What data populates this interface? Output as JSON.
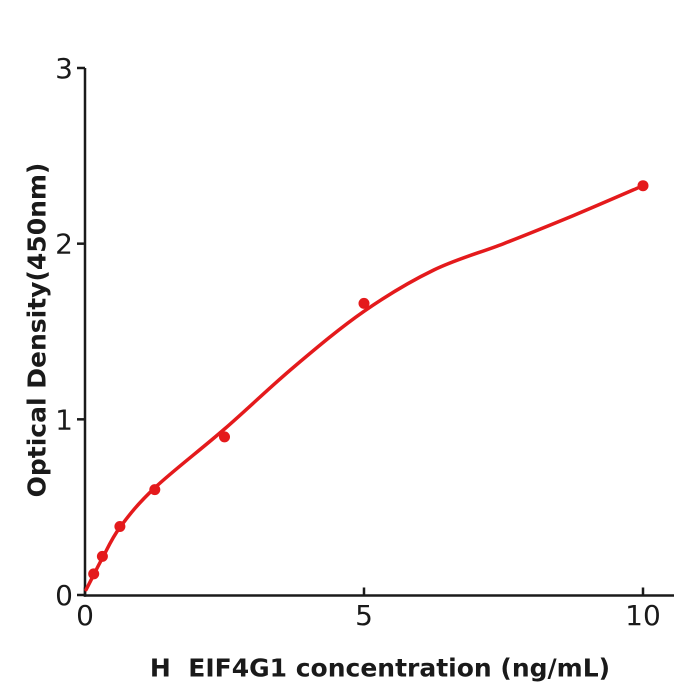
{
  "figure": {
    "background": "#ffffff",
    "x_axis_title": "H  EIF4G1 concentration (ng/mL)",
    "y_axis_title": "Optical Density(450nm)"
  },
  "chart_data": {
    "type": "scatter",
    "title": "",
    "xlabel": "H  EIF4G1 concentration (ng/mL)",
    "ylabel": "Optical Density(450nm)",
    "xlim": [
      0,
      10.55
    ],
    "ylim": [
      0,
      3
    ],
    "xticks": [
      0,
      5,
      10
    ],
    "yticks": [
      0,
      1,
      2,
      3
    ],
    "grid": false,
    "legend": false,
    "colors": {
      "accent": "#e41a1c",
      "axis": "#1a1a1a",
      "text": "#1a1a1a"
    },
    "series": [
      {
        "name": "standard-points",
        "kind": "scatter",
        "color": "#e41a1c",
        "points": [
          [
            0.156,
            0.12
          ],
          [
            0.3125,
            0.22
          ],
          [
            0.625,
            0.39
          ],
          [
            1.25,
            0.6
          ],
          [
            2.5,
            0.9
          ],
          [
            5,
            1.66
          ],
          [
            10,
            2.33
          ]
        ]
      },
      {
        "name": "fit-curve",
        "kind": "line",
        "color": "#e41a1c",
        "points": [
          [
            0.02,
            0.03
          ],
          [
            0.156,
            0.115
          ],
          [
            0.3125,
            0.21
          ],
          [
            0.625,
            0.385
          ],
          [
            1.25,
            0.61
          ],
          [
            2.5,
            0.945
          ],
          [
            3.75,
            1.3
          ],
          [
            5,
            1.615
          ],
          [
            6.25,
            1.85
          ],
          [
            7.5,
            2.0
          ],
          [
            8.75,
            2.16
          ],
          [
            10,
            2.33
          ]
        ]
      }
    ]
  }
}
